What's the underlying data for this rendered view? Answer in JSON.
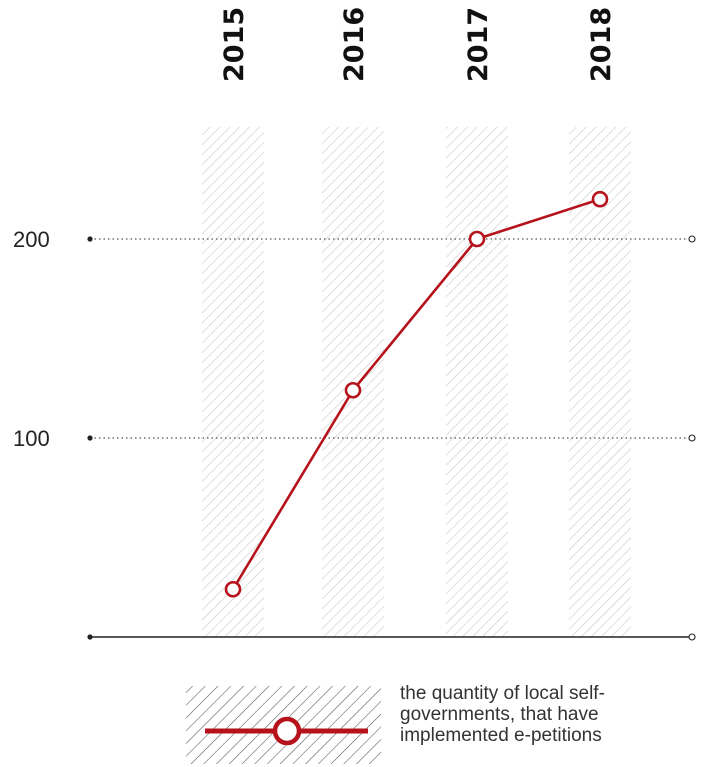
{
  "chart_data": {
    "type": "line",
    "categories": [
      "2015",
      "2016",
      "2017",
      "2018"
    ],
    "series": [
      {
        "name": "the quantity of local self-governments, that have implemented e-petitions",
        "values": [
          24,
          124,
          200,
          220
        ]
      }
    ],
    "ylim": [
      0,
      200
    ],
    "yticks": [
      100,
      200
    ],
    "ytick_labels": [
      "100",
      "200"
    ],
    "grid": "dotted horizontal lines at y ticks",
    "legend_position": "bottom",
    "legend_lines": [
      "the quantity of local self-",
      "governments, that have",
      "implemented e-petitions"
    ],
    "colors": {
      "line": "#b5121b",
      "axis": "#222222",
      "grid": "#555555",
      "band": "#cccccc"
    }
  }
}
